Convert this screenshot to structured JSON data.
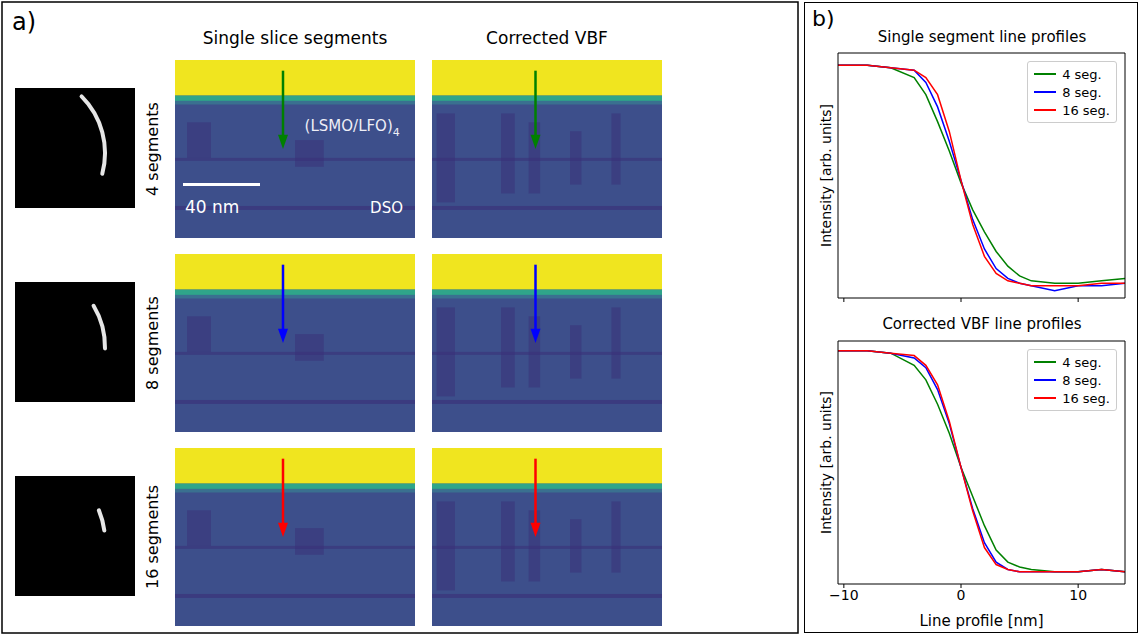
{
  "panel_a": {
    "label": "a)",
    "column_titles": [
      "Single slice segments",
      "Corrected VBF"
    ],
    "rows": [
      {
        "label": "4 segments",
        "arrow_color": "#008000"
      },
      {
        "label": "8 segments",
        "arrow_color": "#0000ff"
      },
      {
        "label": "16 segments",
        "arrow_color": "#ff0000"
      }
    ],
    "annotations": {
      "layer": "(LSMO/LFO)",
      "layer_subscript": "4",
      "scale_bar": "40 nm",
      "substrate": "DSO"
    }
  },
  "panel_b": {
    "label": "b)"
  },
  "chart_data": [
    {
      "type": "line",
      "title": "Single segment line profiles",
      "y_label": "Intensity [arb. units]",
      "x": [
        -10.5,
        -8,
        -6,
        -4,
        -3,
        -2,
        -1,
        0,
        1,
        2,
        3,
        4,
        5,
        6,
        8,
        10,
        12,
        14
      ],
      "xlim": [
        -10.5,
        14
      ],
      "xticks": [
        {
          "value": -10,
          "label": "−10"
        },
        0,
        10
      ],
      "ylim": [
        0,
        1
      ],
      "tick_labels": false,
      "grid": false,
      "legend": "upper right",
      "series": [
        {
          "name": "4 seg.",
          "color": "#008000",
          "values": [
            0.95,
            0.95,
            0.94,
            0.9,
            0.83,
            0.72,
            0.6,
            0.47,
            0.36,
            0.27,
            0.19,
            0.13,
            0.09,
            0.07,
            0.06,
            0.06,
            0.07,
            0.08
          ]
        },
        {
          "name": "8 seg.",
          "color": "#0000ff",
          "values": [
            0.95,
            0.95,
            0.94,
            0.93,
            0.88,
            0.78,
            0.64,
            0.48,
            0.32,
            0.2,
            0.12,
            0.08,
            0.06,
            0.05,
            0.03,
            0.05,
            0.05,
            0.06
          ]
        },
        {
          "name": "16 seg.",
          "color": "#ff0000",
          "values": [
            0.95,
            0.95,
            0.94,
            0.93,
            0.9,
            0.83,
            0.68,
            0.48,
            0.3,
            0.17,
            0.1,
            0.07,
            0.06,
            0.05,
            0.05,
            0.05,
            0.06,
            0.06
          ]
        }
      ]
    },
    {
      "type": "line",
      "title": "Corrected VBF line profiles",
      "x_label": "Line profile [nm]",
      "y_label": "Intensity [arb. units]",
      "x": [
        -10.5,
        -8,
        -6,
        -4,
        -3,
        -2,
        -1,
        0,
        1,
        2,
        3,
        4,
        5,
        6,
        8,
        10,
        12,
        14
      ],
      "xlim": [
        -10.5,
        14
      ],
      "xticks": [
        {
          "value": -10,
          "label": "−10"
        },
        0,
        10
      ],
      "ylim": [
        0,
        1
      ],
      "tick_labels": "x",
      "grid": false,
      "legend": "upper right",
      "series": [
        {
          "name": "4 seg.",
          "color": "#008000",
          "values": [
            0.96,
            0.96,
            0.95,
            0.9,
            0.84,
            0.74,
            0.62,
            0.48,
            0.36,
            0.24,
            0.14,
            0.09,
            0.07,
            0.06,
            0.05,
            0.05,
            0.06,
            0.05
          ]
        },
        {
          "name": "8 seg.",
          "color": "#0000ff",
          "values": [
            0.96,
            0.96,
            0.95,
            0.93,
            0.89,
            0.8,
            0.66,
            0.48,
            0.31,
            0.17,
            0.09,
            0.06,
            0.05,
            0.05,
            0.05,
            0.05,
            0.06,
            0.05
          ]
        },
        {
          "name": "16 seg.",
          "color": "#ff0000",
          "values": [
            0.96,
            0.96,
            0.95,
            0.94,
            0.9,
            0.82,
            0.67,
            0.48,
            0.3,
            0.15,
            0.08,
            0.06,
            0.05,
            0.05,
            0.05,
            0.05,
            0.06,
            0.05
          ]
        }
      ]
    }
  ]
}
